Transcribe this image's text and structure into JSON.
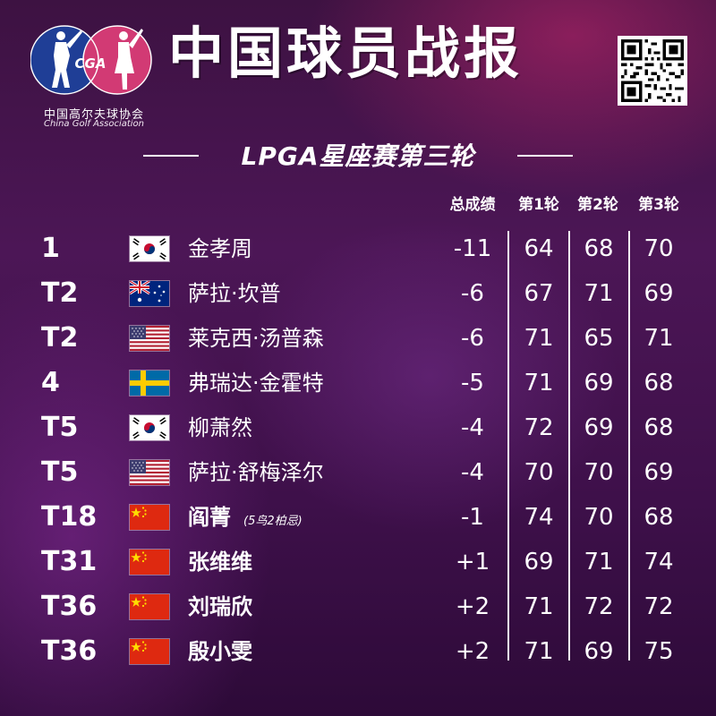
{
  "header": {
    "title": "中国球员战报",
    "org_cn": "中国高尔夫球协会",
    "org_en": "China Golf Association",
    "logo_text": "CGA",
    "subtitle": "LPGA星座赛第三轮"
  },
  "columns": [
    "总成绩",
    "第1轮",
    "第2轮",
    "第3轮"
  ],
  "rows": [
    {
      "rank": "1",
      "flag": "korea",
      "name": "金孝周",
      "note": "",
      "total": "-11",
      "r1": "64",
      "r2": "68",
      "r3": "70"
    },
    {
      "rank": "T2",
      "flag": "australia",
      "name": "萨拉·坎普",
      "note": "",
      "total": "-6",
      "r1": "67",
      "r2": "71",
      "r3": "69"
    },
    {
      "rank": "T2",
      "flag": "usa",
      "name": "莱克西·汤普森",
      "note": "",
      "total": "-6",
      "r1": "71",
      "r2": "65",
      "r3": "71"
    },
    {
      "rank": "4",
      "flag": "sweden",
      "name": "弗瑞达·金霍特",
      "note": "",
      "total": "-5",
      "r1": "71",
      "r2": "69",
      "r3": "68"
    },
    {
      "rank": "T5",
      "flag": "korea",
      "name": "柳萧然",
      "note": "",
      "total": "-4",
      "r1": "72",
      "r2": "69",
      "r3": "68"
    },
    {
      "rank": "T5",
      "flag": "usa",
      "name": "萨拉·舒梅泽尔",
      "note": "",
      "total": "-4",
      "r1": "70",
      "r2": "70",
      "r3": "69"
    },
    {
      "rank": "T18",
      "flag": "china",
      "name": "阎菁",
      "note": "(5鸟2柏忌)",
      "total": "-1",
      "r1": "74",
      "r2": "70",
      "r3": "68"
    },
    {
      "rank": "T31",
      "flag": "china",
      "name": "张维维",
      "note": "",
      "total": "+1",
      "r1": "69",
      "r2": "71",
      "r3": "74"
    },
    {
      "rank": "T36",
      "flag": "china",
      "name": "刘瑞欣",
      "note": "",
      "total": "+2",
      "r1": "71",
      "r2": "72",
      "r3": "72"
    },
    {
      "rank": "T36",
      "flag": "china",
      "name": "殷小雯",
      "note": "",
      "total": "+2",
      "r1": "71",
      "r2": "69",
      "r3": "75"
    }
  ],
  "colors": {
    "bg_dark": "#3d1242",
    "accent_pink": "#c8286e",
    "logo_blue": "#1f3e96",
    "logo_pink": "#d23a74"
  }
}
